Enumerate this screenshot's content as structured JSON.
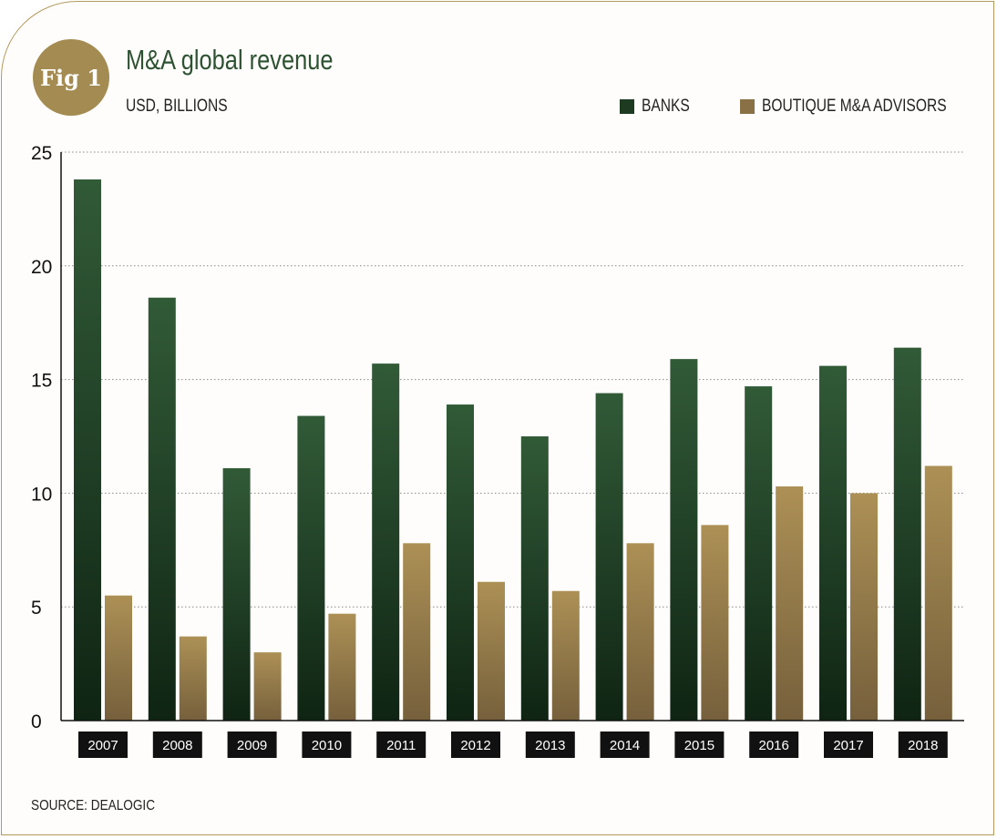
{
  "figure": {
    "badge": "Fig 1",
    "source": "SOURCE: DEALOGIC",
    "colors": {
      "banks": "#2e5434",
      "boutique": "#a48b52",
      "border": "#b59a5e",
      "title": "#2d5232"
    }
  },
  "chart_data": {
    "type": "bar",
    "title": "M&A global revenue",
    "subtitle": "USD, BILLIONS",
    "categories": [
      "2007",
      "2008",
      "2009",
      "2010",
      "2011",
      "2012",
      "2013",
      "2014",
      "2015",
      "2016",
      "2017",
      "2018"
    ],
    "series": [
      {
        "name": "BANKS",
        "values": [
          23.8,
          18.6,
          11.1,
          13.4,
          15.7,
          13.9,
          12.5,
          14.4,
          15.9,
          14.7,
          15.6,
          16.4
        ]
      },
      {
        "name": "BOUTIQUE M&A ADVISORS",
        "values": [
          5.5,
          3.7,
          3.0,
          4.7,
          7.8,
          6.1,
          5.7,
          7.8,
          8.6,
          10.3,
          10.0,
          11.2
        ]
      }
    ],
    "yticks": [
      0,
      5,
      10,
      15,
      20,
      25
    ],
    "ylim": [
      0,
      25
    ],
    "xlabel": "",
    "ylabel": "",
    "grid": true,
    "legend_position": "top-right"
  }
}
